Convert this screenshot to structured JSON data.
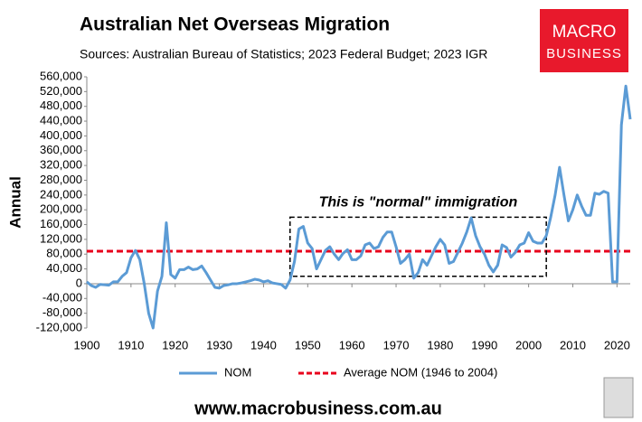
{
  "chart_data": {
    "type": "line",
    "title": "Australian Net Overseas Migration",
    "subtitle": "Sources: Australian Bureau of Statistics; 2023 Federal Budget; 2023 IGR",
    "y_label": "Annual",
    "x": [
      1900,
      1901,
      1902,
      1903,
      1904,
      1905,
      1906,
      1907,
      1908,
      1909,
      1910,
      1911,
      1912,
      1913,
      1914,
      1915,
      1916,
      1917,
      1918,
      1919,
      1920,
      1921,
      1922,
      1923,
      1924,
      1925,
      1926,
      1927,
      1928,
      1929,
      1930,
      1931,
      1932,
      1933,
      1934,
      1935,
      1936,
      1937,
      1938,
      1939,
      1940,
      1941,
      1942,
      1943,
      1944,
      1945,
      1946,
      1947,
      1948,
      1949,
      1950,
      1951,
      1952,
      1953,
      1954,
      1955,
      1956,
      1957,
      1958,
      1959,
      1960,
      1961,
      1962,
      1963,
      1964,
      1965,
      1966,
      1967,
      1968,
      1969,
      1970,
      1971,
      1972,
      1973,
      1974,
      1975,
      1976,
      1977,
      1978,
      1979,
      1980,
      1981,
      1982,
      1983,
      1984,
      1985,
      1986,
      1987,
      1988,
      1989,
      1990,
      1991,
      1992,
      1993,
      1994,
      1995,
      1996,
      1997,
      1998,
      1999,
      2000,
      2001,
      2002,
      2003,
      2004,
      2005,
      2006,
      2007,
      2008,
      2009,
      2010,
      2011,
      2012,
      2013,
      2014,
      2015,
      2016,
      2017,
      2018,
      2019,
      2020,
      2021,
      2022,
      2023
    ],
    "series": [
      {
        "name": "NOM",
        "color": "#5b9bd5",
        "values": [
          5000,
          -5000,
          -10000,
          -2000,
          -3000,
          -4000,
          5000,
          5000,
          20000,
          30000,
          70000,
          90000,
          65000,
          0,
          -80000,
          -120000,
          -20000,
          20000,
          165000,
          25000,
          15000,
          38000,
          38000,
          45000,
          38000,
          40000,
          48000,
          30000,
          10000,
          -10000,
          -12000,
          -5000,
          -3000,
          0,
          0,
          2000,
          5000,
          8000,
          12000,
          10000,
          5000,
          8000,
          2000,
          0,
          -2000,
          -12000,
          10000,
          60000,
          148000,
          155000,
          110000,
          95000,
          40000,
          65000,
          90000,
          100000,
          80000,
          65000,
          82000,
          92000,
          65000,
          65000,
          75000,
          105000,
          110000,
          95000,
          100000,
          125000,
          140000,
          140000,
          100000,
          55000,
          65000,
          80000,
          15000,
          30000,
          65000,
          50000,
          75000,
          100000,
          120000,
          105000,
          55000,
          60000,
          85000,
          110000,
          140000,
          178000,
          130000,
          100000,
          80000,
          50000,
          32000,
          50000,
          105000,
          98000,
          72000,
          85000,
          105000,
          110000,
          138000,
          115000,
          110000,
          110000,
          130000,
          180000,
          240000,
          315000,
          240000,
          170000,
          200000,
          240000,
          210000,
          185000,
          185000,
          245000,
          242000,
          250000,
          245000,
          5000,
          5000,
          430000,
          535000,
          445000
        ]
      }
    ],
    "reference_line": {
      "name": "Average NOM (1946 to 2004)",
      "value": 88000,
      "color": "#e8001c"
    },
    "annotation": {
      "text": "This is \"normal\" immigration",
      "x": [
        1946,
        2004
      ],
      "y": [
        20000,
        180000
      ]
    },
    "xlim": [
      1900,
      2023
    ],
    "xticks": [
      1900,
      1910,
      1920,
      1930,
      1940,
      1950,
      1960,
      1970,
      1980,
      1990,
      2000,
      2010,
      2020
    ],
    "ylim": [
      -120000,
      560000
    ],
    "yticks": [
      {
        "value": -120000,
        "label": "-120,000"
      },
      {
        "value": -80000,
        "label": "-80,000"
      },
      {
        "value": -40000,
        "label": "-40,000"
      },
      0,
      {
        "value": 40000,
        "label": "40,000"
      },
      {
        "value": 80000,
        "label": "80,000"
      },
      {
        "value": 120000,
        "label": "120,000"
      },
      {
        "value": 160000,
        "label": "160,000"
      },
      {
        "value": 200000,
        "label": "200,000"
      },
      {
        "value": 240000,
        "label": "240,000"
      },
      {
        "value": 280000,
        "label": "280,000"
      },
      {
        "value": 320000,
        "label": "320,000"
      },
      {
        "value": 360000,
        "label": "360,000"
      },
      {
        "value": 400000,
        "label": "400,000"
      },
      {
        "value": 440000,
        "label": "440,000"
      },
      {
        "value": 480000,
        "label": "480,000"
      },
      {
        "value": 520000,
        "label": "520,000"
      },
      {
        "value": 560000,
        "label": "560,000"
      }
    ],
    "logo": [
      "MACRO",
      "BUSINESS"
    ],
    "website": "www.macrobusiness.com.au"
  }
}
